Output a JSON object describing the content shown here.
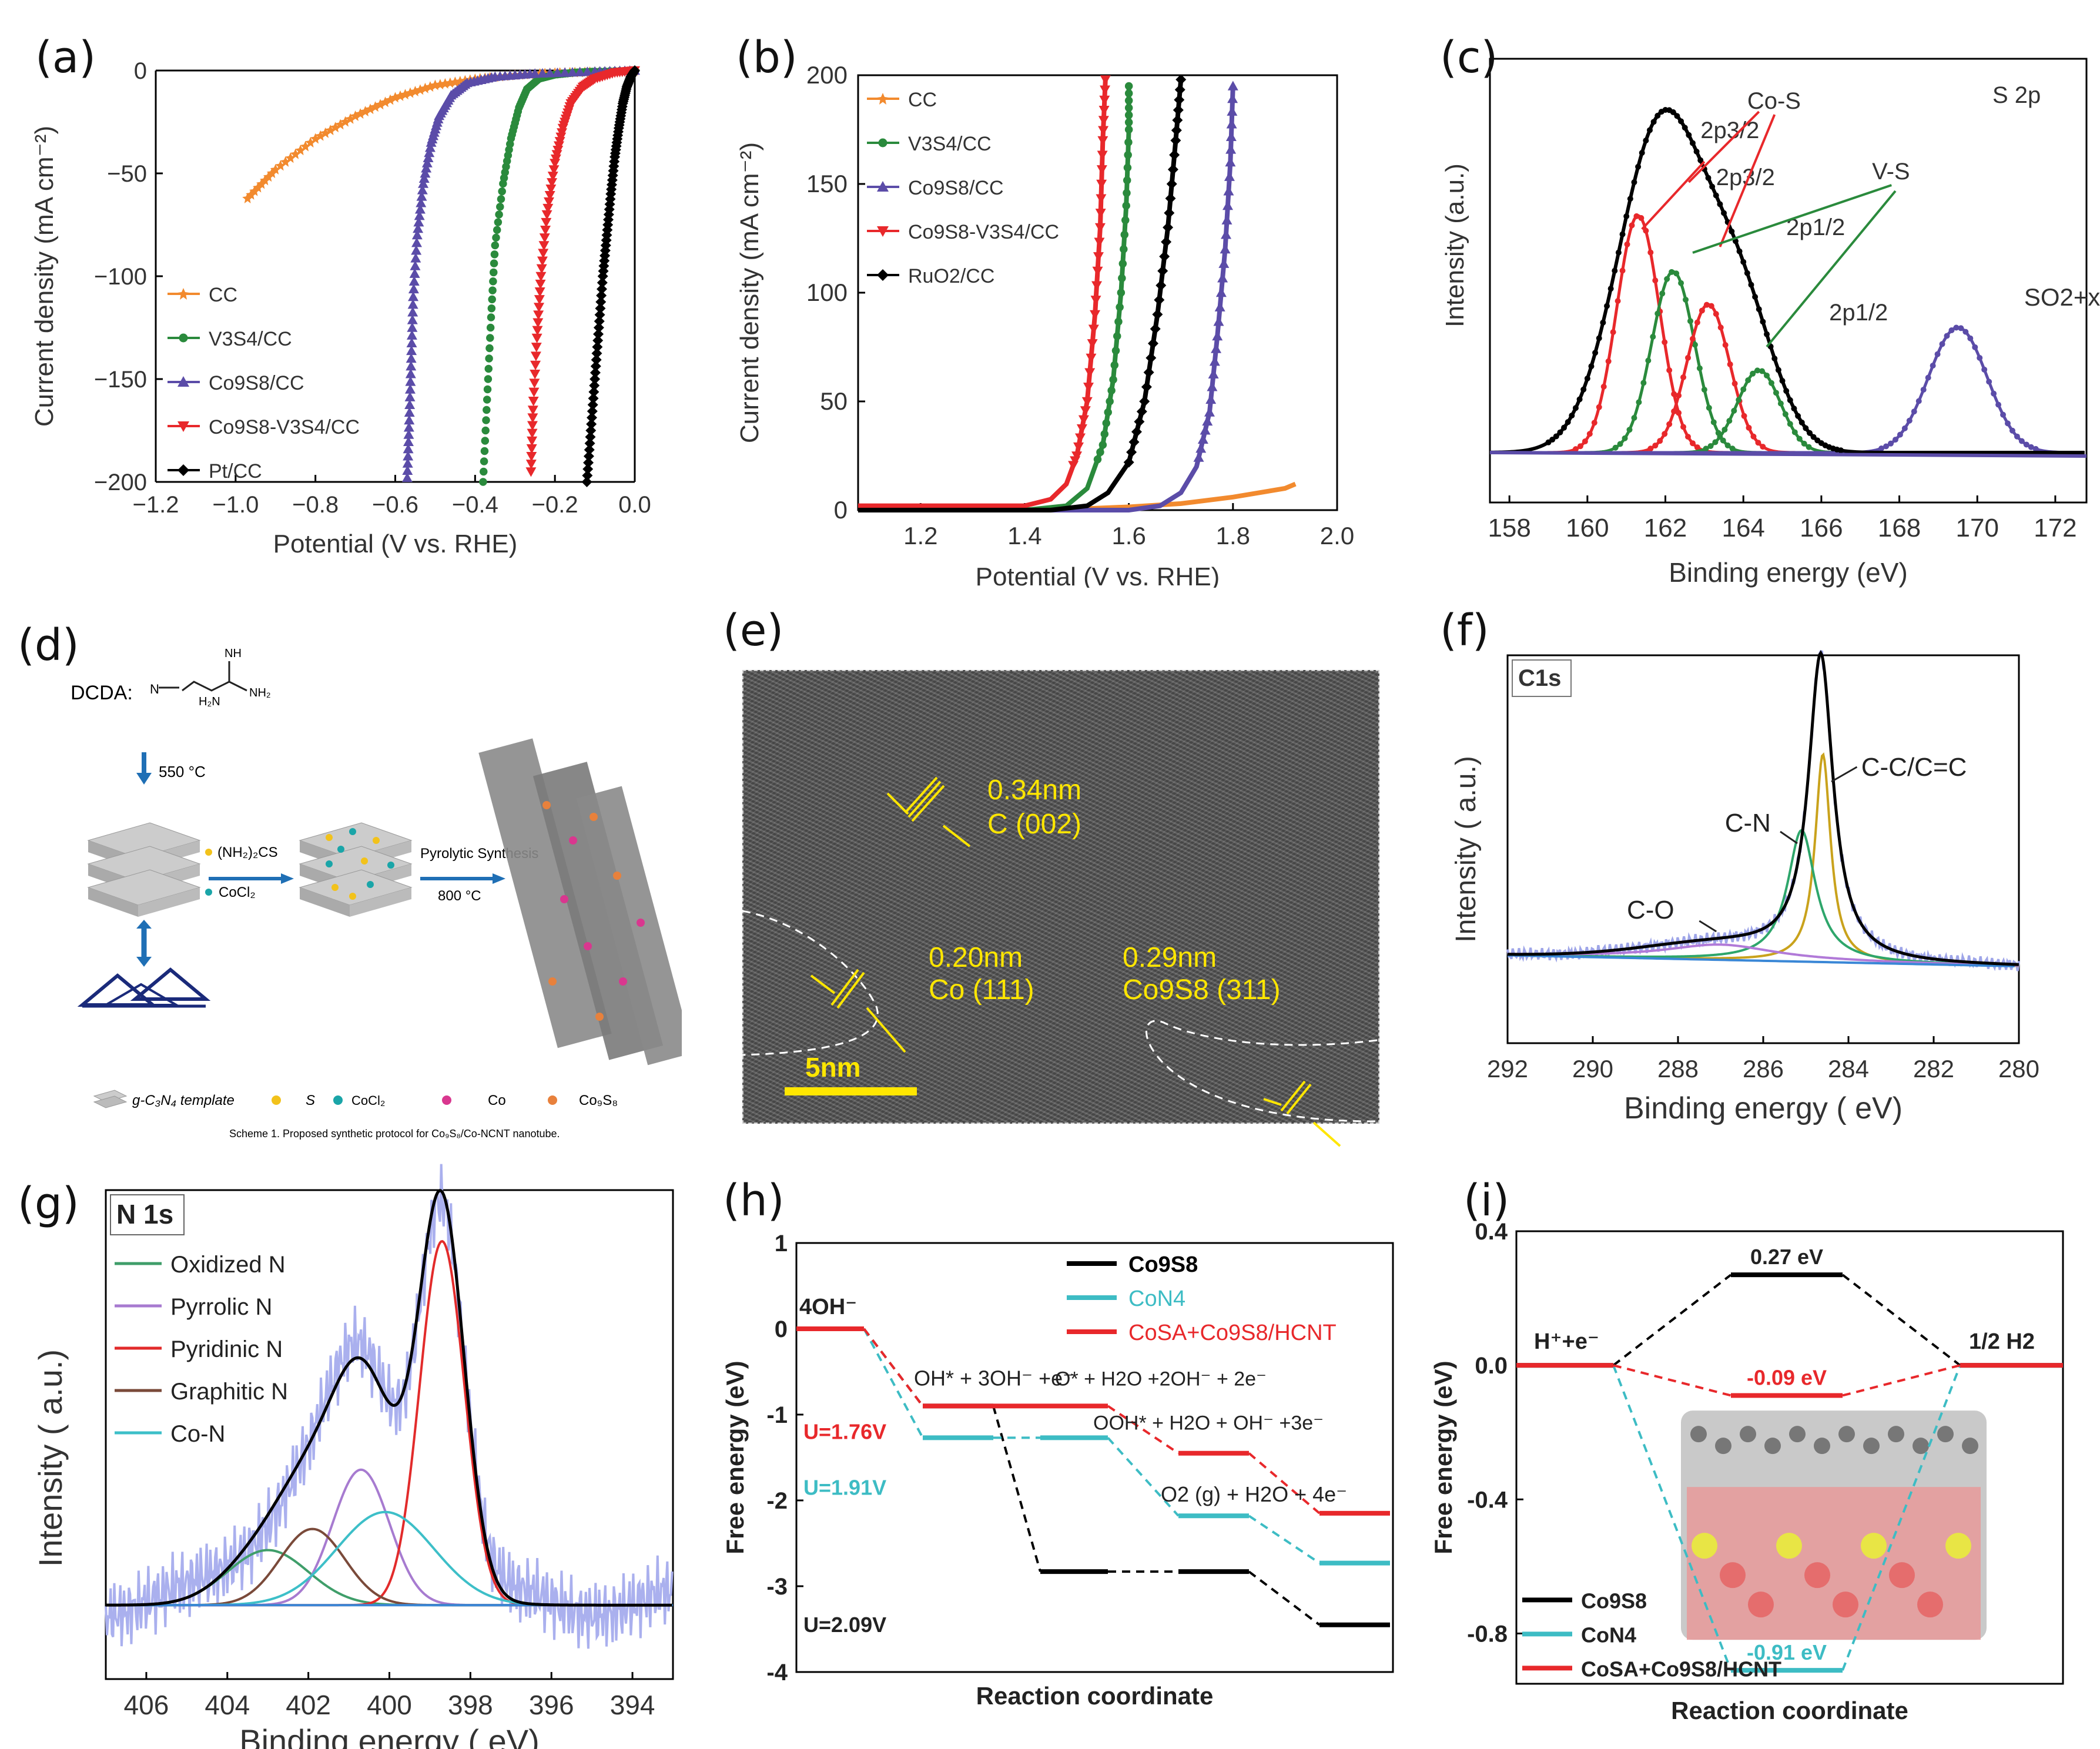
{
  "panel_labels": {
    "a": "(a)",
    "b": "(b)",
    "c": "(c)",
    "d": "(d)",
    "e": "(e)",
    "f": "(f)",
    "g": "(g)",
    "h": "(h)",
    "i": "(i)"
  },
  "colors": {
    "orange": "#f28a2e",
    "green": "#2a8a3c",
    "purple": "#5b4ca8",
    "red": "#e8282b",
    "black": "#000000",
    "cyan": "#3dbcc4",
    "yellow": "#ffe600"
  },
  "chart_data": [
    {
      "id": "a",
      "type": "line",
      "title": "",
      "xlabel": "Potential (V vs. RHE)",
      "ylabel": "Current density (mA cm⁻²)",
      "xlim": [
        -1.2,
        0.0
      ],
      "ylim": [
        -200,
        0
      ],
      "xticks": [
        "−1.2",
        "−1.0",
        "−0.8",
        "−0.6",
        "−0.4",
        "−0.2",
        "0.0"
      ],
      "yticks": [
        "0",
        "−50",
        "−100",
        "−150",
        "−200"
      ],
      "legend": [
        "CC",
        "V3S4/CC",
        "Co9S8/CC",
        "Co9S8-V3S4/CC",
        "Pt/CC"
      ],
      "series": [
        {
          "name": "CC",
          "x": [
            -0.97,
            -0.9,
            -0.8,
            -0.7,
            -0.6,
            -0.5,
            -0.4,
            -0.3,
            -0.2,
            -0.1,
            0.0
          ],
          "y": [
            -62,
            -48,
            -33,
            -22,
            -13,
            -7,
            -4,
            -2,
            -1,
            -0.5,
            0
          ]
        },
        {
          "name": "V3S4/CC",
          "x": [
            -0.38,
            -0.37,
            -0.36,
            -0.35,
            -0.33,
            -0.31,
            -0.29,
            -0.27,
            -0.24,
            -0.2,
            -0.15,
            -0.1,
            0.0
          ],
          "y": [
            -200,
            -160,
            -120,
            -85,
            -55,
            -33,
            -18,
            -9,
            -4,
            -2,
            -1,
            -0.5,
            0
          ]
        },
        {
          "name": "Co9S8/CC",
          "x": [
            -0.57,
            -0.565,
            -0.56,
            -0.555,
            -0.545,
            -0.53,
            -0.51,
            -0.49,
            -0.46,
            -0.42,
            -0.35,
            -0.25,
            -0.1,
            0.0
          ],
          "y": [
            -198,
            -170,
            -140,
            -110,
            -80,
            -55,
            -35,
            -22,
            -12,
            -6,
            -3,
            -1.5,
            -0.5,
            0
          ]
        },
        {
          "name": "Co9S8-V3S4/CC",
          "x": [
            -0.26,
            -0.255,
            -0.245,
            -0.235,
            -0.22,
            -0.2,
            -0.18,
            -0.16,
            -0.13,
            -0.1,
            -0.05,
            0.0
          ],
          "y": [
            -195,
            -165,
            -130,
            -100,
            -70,
            -45,
            -28,
            -16,
            -8,
            -4,
            -1,
            0
          ]
        },
        {
          "name": "Pt/CC",
          "x": [
            -0.12,
            -0.11,
            -0.1,
            -0.09,
            -0.08,
            -0.07,
            -0.06,
            -0.05,
            -0.04,
            -0.03,
            -0.02,
            -0.01,
            0.0
          ],
          "y": [
            -200,
            -175,
            -150,
            -125,
            -100,
            -80,
            -60,
            -42,
            -28,
            -16,
            -8,
            -3,
            0
          ]
        }
      ]
    },
    {
      "id": "b",
      "type": "line",
      "title": "",
      "xlabel": "Potential (V vs. RHE)",
      "ylabel": "Current density (mA cm⁻²)",
      "xlim": [
        1.08,
        2.0
      ],
      "ylim": [
        0,
        200
      ],
      "xticks": [
        "1.2",
        "1.4",
        "1.6",
        "1.8",
        "2.0"
      ],
      "yticks": [
        "0",
        "50",
        "100",
        "150",
        "200"
      ],
      "legend": [
        "CC",
        "V3S4/CC",
        "Co9S8/CC",
        "Co9S8-V3S4/CC",
        "RuO2/CC"
      ],
      "series": [
        {
          "name": "CC",
          "x": [
            1.08,
            1.3,
            1.5,
            1.6,
            1.7,
            1.8,
            1.9,
            1.92
          ],
          "y": [
            0,
            0,
            0.5,
            1.5,
            3,
            6,
            10,
            12
          ]
        },
        {
          "name": "V3S4/CC",
          "x": [
            1.08,
            1.4,
            1.48,
            1.52,
            1.55,
            1.57,
            1.585,
            1.595,
            1.6,
            1.6
          ],
          "y": [
            0,
            0,
            2,
            10,
            30,
            60,
            100,
            140,
            175,
            195
          ]
        },
        {
          "name": "Co9S8/CC",
          "x": [
            1.08,
            1.6,
            1.66,
            1.7,
            1.73,
            1.755,
            1.77,
            1.785,
            1.795,
            1.8
          ],
          "y": [
            0,
            0,
            2,
            8,
            20,
            45,
            80,
            120,
            160,
            195
          ]
        },
        {
          "name": "Co9S8-V3S4/CC",
          "x": [
            1.08,
            1.4,
            1.45,
            1.48,
            1.5,
            1.52,
            1.535,
            1.545,
            1.55,
            1.555
          ],
          "y": [
            2,
            2,
            5,
            12,
            25,
            50,
            90,
            130,
            170,
            198
          ]
        },
        {
          "name": "RuO2/CC",
          "x": [
            1.08,
            1.45,
            1.52,
            1.56,
            1.6,
            1.63,
            1.655,
            1.675,
            1.69,
            1.7
          ],
          "y": [
            0,
            0,
            2,
            8,
            22,
            50,
            90,
            130,
            170,
            198
          ]
        }
      ]
    },
    {
      "id": "c",
      "type": "line",
      "title": "S 2p",
      "xlabel": "Binding energy (eV)",
      "ylabel": "Intensity (a.u.)",
      "xlim": [
        172.8,
        157.5
      ],
      "xticks": [
        "158",
        "160",
        "162",
        "164",
        "166",
        "168",
        "170",
        "172"
      ],
      "annotations": [
        "Co-S",
        "V-S",
        "2p3/2",
        "2p3/2",
        "2p1/2",
        "2p1/2",
        "SO2+x"
      ],
      "series": [
        {
          "name": "Envelope",
          "peaks": [
            [
              161.9,
              1.0,
              1.3
            ],
            [
              163.8,
              0.5,
              1.2
            ]
          ]
        },
        {
          "name": "Co-S 2p3/2",
          "center": 161.3,
          "height": 0.72,
          "width": 0.55
        },
        {
          "name": "V-S 2p3/2",
          "center": 162.2,
          "height": 0.55,
          "width": 0.55
        },
        {
          "name": "Co-S 2p1/2",
          "center": 163.1,
          "height": 0.45,
          "width": 0.55
        },
        {
          "name": "V-S 2p1/2",
          "center": 164.4,
          "height": 0.25,
          "width": 0.55
        },
        {
          "name": "SOx",
          "center": 169.5,
          "height": 0.38,
          "width": 0.75
        }
      ]
    },
    {
      "id": "f",
      "type": "line",
      "title": "C1s",
      "xlabel": "Binding energy ( eV)",
      "ylabel": "Intensity ( a.u.)",
      "xlim": [
        292,
        280
      ],
      "xticks": [
        "292",
        "290",
        "288",
        "286",
        "284",
        "282",
        "280"
      ],
      "annotations": [
        "C-C/C=C",
        "C-N",
        "C-O"
      ],
      "series": [
        {
          "name": "C-C/C=C",
          "center": 284.6,
          "height": 0.68,
          "width": 0.22
        },
        {
          "name": "C-N",
          "center": 285.1,
          "height": 0.43,
          "width": 0.4
        },
        {
          "name": "C-O",
          "center": 287.0,
          "height": 0.05,
          "width": 1.6
        },
        {
          "name": "Envelope",
          "center": 284.7,
          "height": 1.0,
          "width": 0.35
        }
      ]
    },
    {
      "id": "g",
      "type": "line",
      "title": "N 1s",
      "xlabel": "Binding energy ( eV)",
      "ylabel": "Intensity ( a.u.)",
      "xlim": [
        407,
        393
      ],
      "xticks": [
        "406",
        "404",
        "402",
        "400",
        "398",
        "396",
        "394"
      ],
      "legend": [
        "Oxidized N",
        "Pyrrolic N",
        "Pyridinic N",
        "Graphitic N",
        "Co-N"
      ],
      "series": [
        {
          "name": "Oxidized N",
          "center": 403.0,
          "height": 0.13,
          "width": 1.0
        },
        {
          "name": "Pyrrolic N",
          "center": 400.7,
          "height": 0.32,
          "width": 0.7
        },
        {
          "name": "Pyridinic N",
          "center": 398.7,
          "height": 0.86,
          "width": 0.55
        },
        {
          "name": "Graphitic N",
          "center": 401.9,
          "height": 0.18,
          "width": 0.8
        },
        {
          "name": "Co-N",
          "center": 400.1,
          "height": 0.22,
          "width": 1.2
        }
      ]
    },
    {
      "id": "h",
      "type": "line",
      "title": "",
      "xlabel": "Reaction coordinate",
      "ylabel": "Free energy (eV)",
      "ylim": [
        -4,
        1
      ],
      "yticks": [
        "1",
        "0",
        "-1",
        "-2",
        "-3",
        "-4"
      ],
      "legend": [
        "Co9S8",
        "CoN4",
        "CoSA+Co9S8/HCNT"
      ],
      "steps": [
        "4OH⁻",
        "OH* + 3OH⁻ +e⁻",
        "O* + H2O +2OH⁻ + 2e⁻",
        "OOH* + H2O + OH⁻ +3e⁻",
        "O2 (g) + H2O + 4e⁻"
      ],
      "series": [
        {
          "name": "Co9S8",
          "values": [
            0,
            -0.9,
            -2.83,
            -2.83,
            -3.45
          ]
        },
        {
          "name": "CoN4",
          "values": [
            0,
            -1.27,
            -1.27,
            -2.18,
            -2.73
          ]
        },
        {
          "name": "CoSA+Co9S8/HCNT",
          "values": [
            0,
            -0.9,
            -0.9,
            -1.45,
            -2.15
          ]
        }
      ],
      "annotations": [
        "U=1.76V",
        "U=1.91V",
        "U=2.09V"
      ]
    },
    {
      "id": "i",
      "type": "line",
      "title": "",
      "xlabel": "Reaction coordinate",
      "ylabel": "Free energy (eV)",
      "ylim": [
        -0.95,
        0.4
      ],
      "yticks": [
        "0.4",
        "0.0",
        "-0.4",
        "-0.8"
      ],
      "legend": [
        "Co9S8",
        "CoN4",
        "CoSA+Co9S8/HCNT"
      ],
      "states": [
        "H⁺+e⁻",
        "1/2 H2"
      ],
      "series": [
        {
          "name": "Co9S8",
          "values": [
            0,
            0.27,
            0
          ]
        },
        {
          "name": "CoN4",
          "values": [
            0,
            -0.91,
            0
          ]
        },
        {
          "name": "CoSA+Co9S8/HCNT",
          "values": [
            0,
            -0.09,
            0
          ]
        }
      ],
      "annotations": [
        "0.27 eV",
        "-0.09 eV",
        "-0.91 eV"
      ]
    }
  ],
  "scheme_d": {
    "dcda_label": "DCDA:",
    "temp1": "550 °C",
    "reagent1": "(NH₂)₂CS",
    "reagent2": "CoCl₂",
    "step2a": "Pyrolytic Synthesis",
    "step2b": "800 °C",
    "legend_template": "g-C₃N₄ template",
    "legend_s": "S",
    "legend_cocl2": "CoCl₂",
    "legend_co": "Co",
    "legend_co9s8": "Co₉S₈",
    "caption": "Scheme 1. Proposed synthetic protocol for Co₉S₈/Co-NCNT nanotube."
  },
  "tem_e": {
    "lbl1a": "0.34nm",
    "lbl1b": "C (002)",
    "lbl2a": "0.20nm",
    "lbl2b": "Co (111)",
    "lbl3a": "0.29nm",
    "lbl3b": "Co9S8 (311)",
    "scale": "5nm"
  }
}
